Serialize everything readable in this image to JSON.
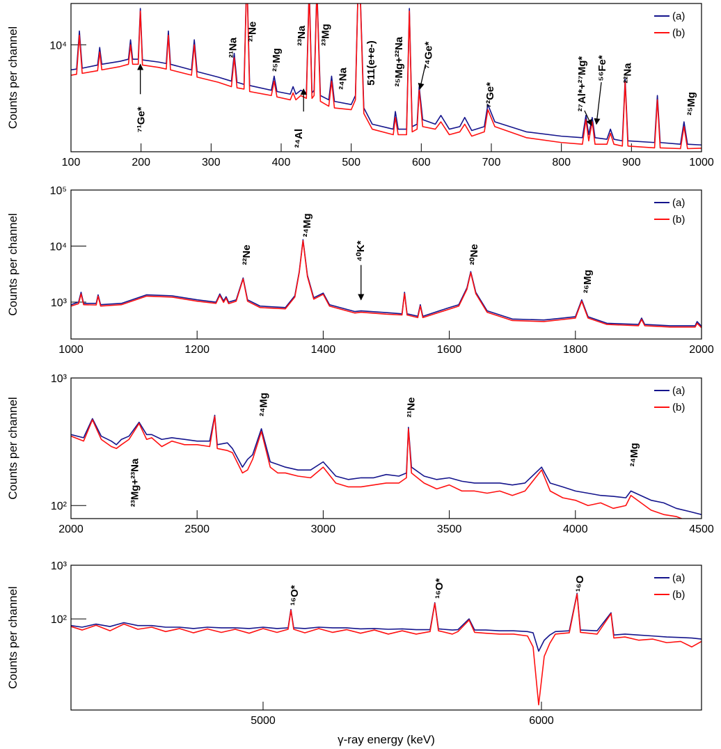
{
  "chart_data": [
    {
      "type": "line",
      "log_y": true,
      "legend": "upper right",
      "xlim": [
        100,
        1000
      ],
      "xticks": [
        100,
        200,
        300,
        400,
        500,
        600,
        700,
        800,
        900,
        1000
      ],
      "ylim": [
        1300,
        22000
      ],
      "yticks": [
        {
          "value": 10000,
          "label": "10⁴"
        }
      ],
      "ylabel": "Counts per channel",
      "x": [
        100,
        108,
        112,
        116,
        138,
        141,
        144,
        170,
        182,
        185,
        188,
        196,
        199,
        202,
        225,
        236,
        239,
        242,
        272,
        276,
        280,
        310,
        329,
        333,
        337,
        347,
        351,
        355,
        386,
        390,
        394,
        413,
        417,
        421,
        428,
        436,
        440,
        444,
        447,
        451,
        456,
        468,
        472,
        476,
        500,
        506,
        511,
        518,
        530,
        560,
        563,
        567,
        579,
        583,
        587,
        594,
        597,
        602,
        620,
        628,
        640,
        655,
        662,
        672,
        690,
        695,
        705,
        750,
        800,
        830,
        835,
        839,
        844,
        848,
        865,
        870,
        875,
        887,
        891,
        895,
        933,
        937,
        941,
        970,
        975,
        980,
        1000
      ],
      "series": [
        {
          "name": "(a)",
          "color": "#14148c",
          "values": [
            6200,
            6300,
            13000,
            6400,
            6800,
            9500,
            6900,
            7300,
            7600,
            11000,
            7600,
            7600,
            20000,
            7500,
            7200,
            7000,
            13000,
            6900,
            6200,
            11000,
            6000,
            5400,
            5000,
            8500,
            4900,
            4700,
            40000,
            4600,
            4200,
            5500,
            4100,
            3900,
            4500,
            3900,
            4200,
            4000,
            30000,
            4000,
            4200,
            30000,
            3800,
            3500,
            5500,
            3400,
            3200,
            3800,
            60000,
            3000,
            2200,
            2000,
            2800,
            2000,
            2000,
            20000,
            2100,
            2200,
            4500,
            2400,
            2200,
            2600,
            2000,
            2100,
            2500,
            1950,
            2100,
            3200,
            2300,
            1900,
            1750,
            1700,
            2600,
            1800,
            2500,
            1700,
            1650,
            2000,
            1650,
            1600,
            5200,
            1600,
            1550,
            3800,
            1550,
            1500,
            2300,
            1500,
            1480
          ]
        },
        {
          "name": "(b)",
          "color": "#ff1010",
          "values": [
            5600,
            5700,
            12000,
            5800,
            6100,
            8700,
            6200,
            6600,
            6900,
            10000,
            6900,
            6900,
            19000,
            6800,
            6500,
            6300,
            12000,
            6200,
            5600,
            10000,
            5400,
            4900,
            4500,
            7800,
            4400,
            4300,
            38000,
            4100,
            3800,
            5000,
            3700,
            3500,
            4000,
            3500,
            3800,
            3600,
            28000,
            3600,
            3800,
            28000,
            3400,
            3100,
            5000,
            3000,
            2900,
            3500,
            58000,
            2700,
            2000,
            1800,
            2500,
            1800,
            1800,
            19000,
            1900,
            2000,
            4200,
            2100,
            2000,
            2300,
            1800,
            1900,
            2200,
            1750,
            1900,
            2900,
            2100,
            1700,
            1550,
            1500,
            2400,
            1600,
            2300,
            1500,
            1500,
            1850,
            1500,
            1450,
            4900,
            1450,
            1400,
            3500,
            1400,
            1380,
            2100,
            1380,
            1390
          ]
        }
      ],
      "annotations": [
        {
          "text": "⁷¹Ge*",
          "x": 199,
          "y": 1875
        },
        {
          "text": "²¹Na",
          "x": 330,
          "y": 7800
        },
        {
          "text": "²¹Ne",
          "x": 358,
          "y": 10600
        },
        {
          "text": "²⁵Mg",
          "x": 392,
          "y": 6000
        },
        {
          "text": "²³Na",
          "x": 428,
          "y": 9800
        },
        {
          "text": "²³Mg",
          "x": 462,
          "y": 9800
        },
        {
          "text": "²⁴Na",
          "x": 487,
          "y": 4250
        },
        {
          "text": "²⁴Al",
          "x": 424,
          "y": 1400
        },
        {
          "text": "511(e+e-)",
          "x": 527,
          "y": 4600
        },
        {
          "text": "²⁵Mg+²²Na",
          "x": 567,
          "y": 4500
        },
        {
          "text": "⁷⁴Ge*",
          "x": 609,
          "y": 6300
        },
        {
          "text": "⁷²Ge*",
          "x": 697,
          "y": 3000
        },
        {
          "text": "²⁷Al*+²⁷Mg*",
          "x": 828,
          "y": 2800
        },
        {
          "text": "⁵⁶Fe*",
          "x": 857,
          "y": 5000
        },
        {
          "text": "²²Na",
          "x": 893,
          "y": 4800
        },
        {
          "text": "²⁵Mg",
          "x": 984,
          "y": 2600
        }
      ],
      "arrows": [
        {
          "x": [
            199,
            199
          ],
          "y": [
            3900,
            6900
          ]
        },
        {
          "x": [
            432,
            432
          ],
          "y": [
            2800,
            4300
          ]
        },
        {
          "x": [
            606,
            598
          ],
          "y": [
            6900,
            4300
          ]
        },
        {
          "x": [
            833,
            843
          ],
          "y": [
            2850,
            2150
          ]
        },
        {
          "x": [
            857,
            850
          ],
          "y": [
            4900,
            2200
          ]
        }
      ]
    },
    {
      "type": "line",
      "log_y": true,
      "legend": "upper right",
      "xlim": [
        1000,
        2000
      ],
      "xticks": [
        1000,
        1200,
        1400,
        1600,
        1800,
        2000
      ],
      "ylim": [
        220,
        100000
      ],
      "yticks": [
        {
          "value": 1000,
          "label": "10³"
        },
        {
          "value": 10000,
          "label": "10⁴"
        },
        {
          "value": 100000,
          "label": "10⁵"
        }
      ],
      "ylabel": "Counts per channel",
      "x": [
        1000,
        1012,
        1016,
        1020,
        1040,
        1043,
        1047,
        1080,
        1120,
        1160,
        1200,
        1230,
        1236,
        1242,
        1246,
        1250,
        1262,
        1273,
        1280,
        1300,
        1340,
        1355,
        1362,
        1368,
        1375,
        1385,
        1400,
        1410,
        1450,
        1460,
        1500,
        1525,
        1529,
        1533,
        1550,
        1554,
        1558,
        1600,
        1615,
        1628,
        1634,
        1642,
        1660,
        1700,
        1750,
        1780,
        1800,
        1810,
        1820,
        1850,
        1900,
        1905,
        1910,
        1950,
        1990,
        1993,
        2000
      ],
      "series": [
        {
          "name": "(a)",
          "color": "#14148c",
          "values": [
            900,
            1000,
            1500,
            950,
            950,
            1350,
            900,
            950,
            1350,
            1300,
            1100,
            1000,
            1400,
            1050,
            1250,
            1000,
            1100,
            2700,
            1100,
            850,
            800,
            1300,
            3500,
            13000,
            3000,
            1200,
            1450,
            900,
            680,
            700,
            650,
            620,
            1500,
            620,
            560,
            900,
            560,
            800,
            900,
            1800,
            3500,
            1500,
            700,
            500,
            480,
            520,
            550,
            1100,
            550,
            420,
            400,
            520,
            400,
            380,
            380,
            450,
            370
          ]
        },
        {
          "name": "(b)",
          "color": "#ff1010",
          "values": [
            850,
            940,
            1400,
            900,
            890,
            1280,
            850,
            900,
            1280,
            1230,
            1040,
            950,
            1320,
            990,
            1180,
            940,
            1040,
            2600,
            1040,
            800,
            760,
            1230,
            3350,
            12500,
            2850,
            1130,
            1380,
            850,
            640,
            660,
            610,
            590,
            1420,
            590,
            530,
            850,
            530,
            750,
            850,
            1700,
            3350,
            1420,
            660,
            470,
            450,
            490,
            520,
            1040,
            520,
            400,
            380,
            490,
            380,
            360,
            360,
            420,
            350
          ]
        }
      ],
      "annotations": [
        {
          "text": "²²Ne",
          "x": 1277,
          "y": 4600
        },
        {
          "text": "²⁴Mg",
          "x": 1373,
          "y": 14500
        },
        {
          "text": "⁴⁰K*",
          "x": 1458,
          "y": 5300
        },
        {
          "text": "²⁰Ne",
          "x": 1638,
          "y": 4600
        },
        {
          "text": "²⁶Mg",
          "x": 1818,
          "y": 1450
        }
      ],
      "arrows": [
        {
          "x": [
            1460,
            1460
          ],
          "y": [
            4600,
            1100
          ]
        }
      ]
    },
    {
      "type": "line",
      "log_y": true,
      "legend": "upper right",
      "xlim": [
        2000,
        4500
      ],
      "xticks": [
        2000,
        2500,
        3000,
        3500,
        4000,
        4500
      ],
      "ylim": [
        79,
        1000
      ],
      "yticks": [
        {
          "value": 100,
          "label": "10²"
        },
        {
          "value": 1000,
          "label": "10³"
        }
      ],
      "ylabel": "Counts per channel",
      "x": [
        2000,
        2050,
        2085,
        2120,
        2160,
        2180,
        2200,
        2230,
        2270,
        2300,
        2320,
        2360,
        2400,
        2450,
        2500,
        2550,
        2570,
        2580,
        2620,
        2640,
        2680,
        2700,
        2720,
        2755,
        2790,
        2820,
        2850,
        2900,
        2950,
        3000,
        3050,
        3100,
        3150,
        3200,
        3250,
        3300,
        3330,
        3338,
        3350,
        3400,
        3450,
        3500,
        3550,
        3600,
        3650,
        3700,
        3750,
        3800,
        3866,
        3900,
        3950,
        4000,
        4050,
        4100,
        4150,
        4200,
        4220,
        4300,
        4350,
        4400,
        4450,
        4500
      ],
      "series": [
        {
          "name": "(a)",
          "color": "#14148c",
          "values": [
            360,
            340,
            480,
            350,
            320,
            300,
            330,
            350,
            450,
            360,
            360,
            330,
            340,
            330,
            320,
            320,
            510,
            300,
            310,
            280,
            200,
            230,
            250,
            400,
            220,
            210,
            200,
            190,
            190,
            220,
            170,
            160,
            165,
            165,
            175,
            170,
            180,
            410,
            200,
            170,
            160,
            165,
            155,
            150,
            150,
            150,
            145,
            150,
            200,
            150,
            140,
            130,
            125,
            120,
            118,
            115,
            130,
            110,
            105,
            95,
            90,
            85
          ]
        },
        {
          "name": "(b)",
          "color": "#ff1010",
          "values": [
            350,
            320,
            470,
            330,
            290,
            280,
            300,
            330,
            440,
            330,
            340,
            290,
            320,
            300,
            300,
            290,
            500,
            280,
            270,
            260,
            180,
            190,
            230,
            380,
            200,
            180,
            180,
            170,
            165,
            200,
            150,
            140,
            140,
            145,
            150,
            150,
            165,
            400,
            180,
            150,
            135,
            145,
            130,
            130,
            125,
            130,
            120,
            130,
            190,
            130,
            115,
            110,
            100,
            105,
            95,
            100,
            120,
            92,
            85,
            82,
            75,
            75
          ]
        }
      ],
      "annotations": [
        {
          "text": "²⁴Mg",
          "x": 2760,
          "y": 500
        },
        {
          "text": "²¹Ne",
          "x": 3345,
          "y": 490
        },
        {
          "text": "²⁴Mg",
          "x": 4230,
          "y": 202
        },
        {
          "text": "²³Mg+²³Na",
          "x": 2250,
          "y": 97.5
        }
      ],
      "arrows": []
    },
    {
      "type": "line",
      "log_y": true,
      "legend": "upper right",
      "xlim": [
        4310,
        6575
      ],
      "xticks": [
        5000,
        6000
      ],
      "ylim": [
        2,
        1000
      ],
      "yticks": [
        {
          "value": 100,
          "label": "10²"
        },
        {
          "value": 1000,
          "label": "10³"
        }
      ],
      "ylabel": "Counts per channel",
      "xlabel": "γ-ray energy (keV)",
      "x": [
        4310,
        4350,
        4400,
        4450,
        4500,
        4550,
        4600,
        4650,
        4700,
        4750,
        4800,
        4850,
        4900,
        4950,
        5000,
        5050,
        5090,
        5100,
        5110,
        5150,
        5200,
        5250,
        5300,
        5350,
        5400,
        5450,
        5500,
        5550,
        5600,
        5617,
        5630,
        5680,
        5700,
        5740,
        5760,
        5800,
        5850,
        5900,
        5950,
        5970,
        5990,
        6010,
        6030,
        6050,
        6100,
        6128,
        6140,
        6200,
        6250,
        6260,
        6300,
        6350,
        6400,
        6450,
        6500,
        6540,
        6575
      ],
      "series": [
        {
          "name": "(a)",
          "color": "#14148c",
          "values": [
            75,
            70,
            80,
            72,
            85,
            75,
            75,
            70,
            70,
            66,
            70,
            68,
            68,
            66,
            70,
            66,
            68,
            150,
            68,
            66,
            70,
            68,
            68,
            65,
            66,
            64,
            65,
            63,
            63,
            200,
            65,
            62,
            63,
            100,
            62,
            62,
            60,
            60,
            58,
            55,
            25,
            40,
            50,
            58,
            60,
            300,
            62,
            60,
            130,
            50,
            52,
            50,
            48,
            46,
            45,
            44,
            42
          ]
        },
        {
          "name": "(b)",
          "color": "#ff1010",
          "values": [
            72,
            62,
            76,
            60,
            80,
            64,
            70,
            58,
            66,
            55,
            65,
            56,
            64,
            54,
            66,
            56,
            64,
            145,
            64,
            55,
            66,
            56,
            63,
            54,
            62,
            52,
            60,
            52,
            58,
            195,
            60,
            52,
            58,
            95,
            56,
            54,
            52,
            52,
            48,
            30,
            2.5,
            20,
            35,
            52,
            55,
            290,
            56,
            52,
            125,
            44,
            46,
            40,
            42,
            36,
            38,
            30,
            38
          ]
        }
      ],
      "annotations": [
        {
          "text": "¹⁶O*",
          "x": 5110,
          "y": 177
        },
        {
          "text": "¹⁶O*",
          "x": 5630,
          "y": 238
        },
        {
          "text": "¹⁶O",
          "x": 6135,
          "y": 320
        }
      ],
      "arrows": []
    }
  ]
}
